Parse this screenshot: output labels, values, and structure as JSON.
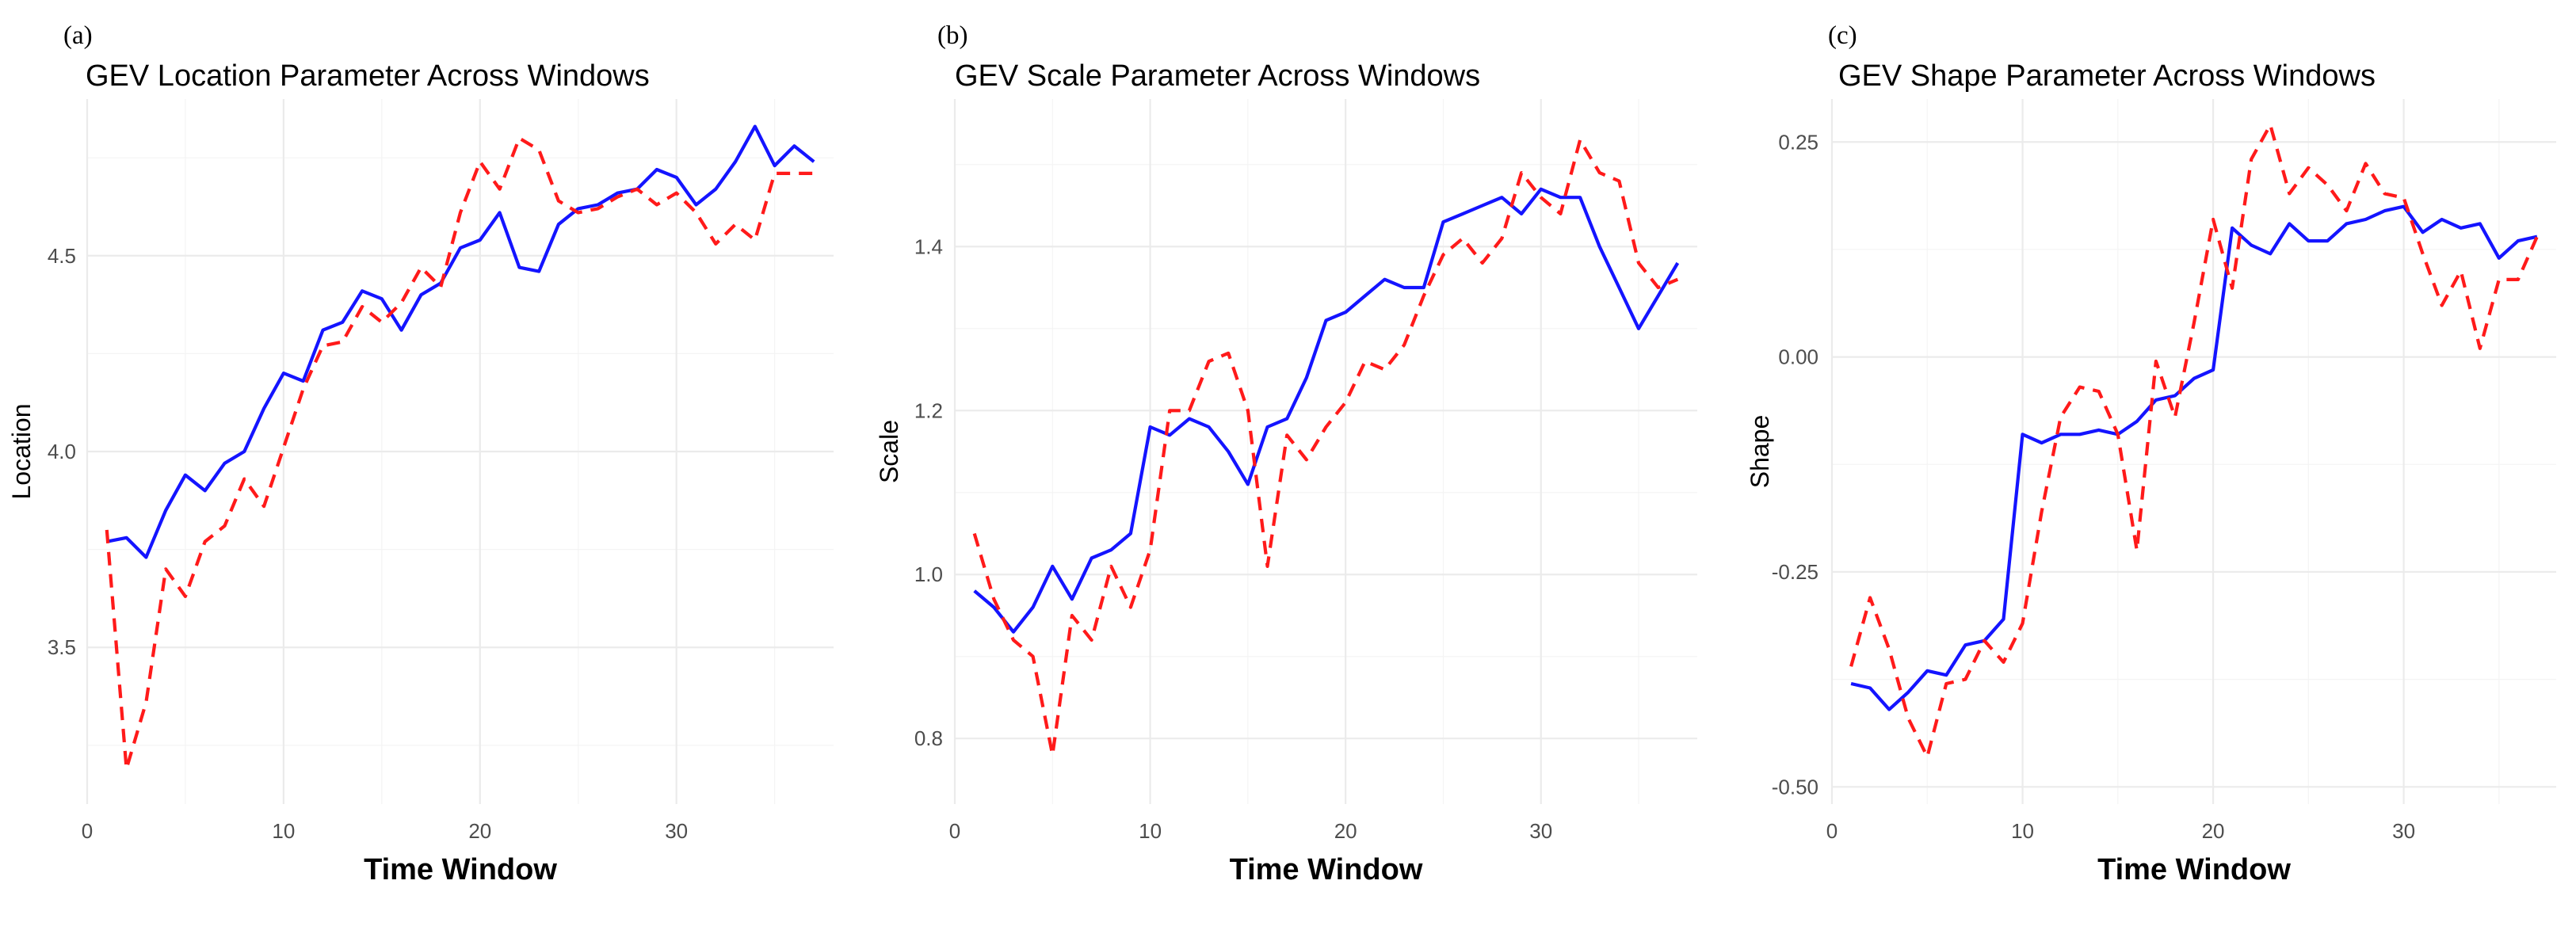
{
  "chart_data": [
    {
      "type": "line",
      "panel_label": "(a)",
      "title": "GEV Location Parameter Across Windows",
      "xlabel": "Time Window",
      "ylabel": "Location",
      "xlim": [
        0,
        38
      ],
      "ylim": [
        3.1,
        4.9
      ],
      "x_major_ticks": [
        0,
        10,
        20,
        30
      ],
      "x_minor_ticks": [
        5,
        15,
        25,
        35
      ],
      "y_major_ticks": [
        3.5,
        4.0,
        4.5
      ],
      "y_minor_ticks": [
        3.25,
        3.75,
        4.25,
        4.75
      ],
      "x_tick_labels": [
        "0",
        "10",
        "20",
        "30"
      ],
      "y_tick_labels": [
        "3.5",
        "4.0",
        "4.5"
      ],
      "grid": true,
      "legend": "none",
      "x": [
        1,
        2,
        3,
        4,
        5,
        6,
        7,
        8,
        9,
        10,
        11,
        12,
        13,
        14,
        15,
        16,
        17,
        18,
        19,
        20,
        21,
        22,
        23,
        24,
        25,
        26,
        27,
        28,
        29,
        30,
        31,
        32,
        33,
        34,
        35,
        36,
        37
      ],
      "series": [
        {
          "color": "#1414ff",
          "dash": "solid",
          "values": [
            3.77,
            3.78,
            3.73,
            3.85,
            3.94,
            3.9,
            3.97,
            4.0,
            4.11,
            4.2,
            4.18,
            4.31,
            4.33,
            4.41,
            4.39,
            4.31,
            4.4,
            4.43,
            4.52,
            4.54,
            4.61,
            4.47,
            4.46,
            4.58,
            4.62,
            4.63,
            4.66,
            4.67,
            4.72,
            4.7,
            4.63,
            4.67,
            4.74,
            4.83,
            4.73,
            4.78,
            4.74
          ]
        },
        {
          "color": "#ff1a1a",
          "dash": "dashed",
          "values": [
            3.8,
            3.19,
            3.36,
            3.7,
            3.63,
            3.77,
            3.81,
            3.93,
            3.86,
            4.01,
            4.16,
            4.27,
            4.28,
            4.37,
            4.33,
            4.38,
            4.47,
            4.42,
            4.61,
            4.74,
            4.67,
            4.8,
            4.77,
            4.64,
            4.61,
            4.62,
            4.65,
            4.67,
            4.63,
            4.66,
            4.61,
            4.53,
            4.58,
            4.54,
            4.71,
            4.71,
            4.71
          ]
        }
      ]
    },
    {
      "type": "line",
      "panel_label": "(b)",
      "title": "GEV Scale Parameter Across Windows",
      "xlabel": "Time Window",
      "ylabel": "Scale",
      "xlim": [
        0,
        38
      ],
      "ylim": [
        0.72,
        1.58
      ],
      "x_major_ticks": [
        0,
        10,
        20,
        30
      ],
      "x_minor_ticks": [
        5,
        15,
        25,
        35
      ],
      "y_major_ticks": [
        0.8,
        1.0,
        1.2,
        1.4
      ],
      "y_minor_ticks": [
        0.9,
        1.1,
        1.3,
        1.5
      ],
      "x_tick_labels": [
        "0",
        "10",
        "20",
        "30"
      ],
      "y_tick_labels": [
        "0.8",
        "1.0",
        "1.2",
        "1.4"
      ],
      "grid": true,
      "legend": "none",
      "x": [
        1,
        2,
        3,
        4,
        5,
        6,
        7,
        8,
        9,
        10,
        11,
        12,
        13,
        14,
        15,
        16,
        17,
        18,
        19,
        20,
        21,
        22,
        23,
        24,
        25,
        26,
        27,
        28,
        29,
        30,
        31,
        32,
        33,
        34,
        35,
        36,
        37
      ],
      "series": [
        {
          "color": "#1414ff",
          "dash": "solid",
          "values": [
            0.98,
            0.96,
            0.93,
            0.96,
            1.01,
            0.97,
            1.02,
            1.03,
            1.05,
            1.18,
            1.17,
            1.19,
            1.18,
            1.15,
            1.11,
            1.18,
            1.19,
            1.24,
            1.31,
            1.32,
            1.34,
            1.36,
            1.35,
            1.35,
            1.43,
            1.44,
            1.45,
            1.46,
            1.44,
            1.47,
            1.46,
            1.46,
            1.4,
            1.35,
            1.3,
            1.34,
            1.38
          ]
        },
        {
          "color": "#ff1a1a",
          "dash": "dashed",
          "values": [
            1.05,
            0.97,
            0.92,
            0.9,
            0.78,
            0.95,
            0.92,
            1.01,
            0.96,
            1.03,
            1.2,
            1.2,
            1.26,
            1.27,
            1.2,
            1.01,
            1.17,
            1.14,
            1.18,
            1.21,
            1.26,
            1.25,
            1.28,
            1.34,
            1.39,
            1.41,
            1.38,
            1.41,
            1.49,
            1.46,
            1.44,
            1.53,
            1.49,
            1.48,
            1.38,
            1.35,
            1.36
          ]
        }
      ]
    },
    {
      "type": "line",
      "panel_label": "(c)",
      "title": "GEV Shape Parameter Across Windows",
      "xlabel": "Time Window",
      "ylabel": "Shape",
      "xlim": [
        0,
        38
      ],
      "ylim": [
        -0.52,
        0.3
      ],
      "x_major_ticks": [
        0,
        10,
        20,
        30
      ],
      "x_minor_ticks": [
        5,
        15,
        25,
        35
      ],
      "y_major_ticks": [
        -0.5,
        -0.25,
        0.0,
        0.25
      ],
      "y_minor_ticks": [
        -0.375,
        -0.125,
        0.125
      ],
      "x_tick_labels": [
        "0",
        "10",
        "20",
        "30"
      ],
      "y_tick_labels": [
        "-0.50",
        "-0.25",
        "0.00",
        "0.25"
      ],
      "grid": true,
      "legend": "none",
      "x": [
        1,
        2,
        3,
        4,
        5,
        6,
        7,
        8,
        9,
        10,
        11,
        12,
        13,
        14,
        15,
        16,
        17,
        18,
        19,
        20,
        21,
        22,
        23,
        24,
        25,
        26,
        27,
        28,
        29,
        30,
        31,
        32,
        33,
        34,
        35,
        36,
        37
      ],
      "series": [
        {
          "color": "#1414ff",
          "dash": "solid",
          "values": [
            -0.38,
            -0.385,
            -0.41,
            -0.39,
            -0.365,
            -0.37,
            -0.335,
            -0.33,
            -0.305,
            -0.09,
            -0.1,
            -0.09,
            -0.09,
            -0.085,
            -0.09,
            -0.075,
            -0.05,
            -0.045,
            -0.025,
            -0.015,
            0.15,
            0.13,
            0.12,
            0.155,
            0.135,
            0.135,
            0.155,
            0.16,
            0.17,
            0.175,
            0.145,
            0.16,
            0.15,
            0.155,
            0.115,
            0.135,
            0.14
          ]
        },
        {
          "color": "#ff1a1a",
          "dash": "dashed",
          "values": [
            -0.36,
            -0.28,
            -0.34,
            -0.42,
            -0.465,
            -0.38,
            -0.375,
            -0.33,
            -0.355,
            -0.31,
            -0.18,
            -0.07,
            -0.035,
            -0.04,
            -0.09,
            -0.225,
            -0.005,
            -0.07,
            0.04,
            0.16,
            0.08,
            0.23,
            0.27,
            0.19,
            0.22,
            0.2,
            0.17,
            0.225,
            0.19,
            0.185,
            0.12,
            0.06,
            0.1,
            0.01,
            0.09,
            0.09,
            0.14
          ]
        }
      ]
    }
  ]
}
